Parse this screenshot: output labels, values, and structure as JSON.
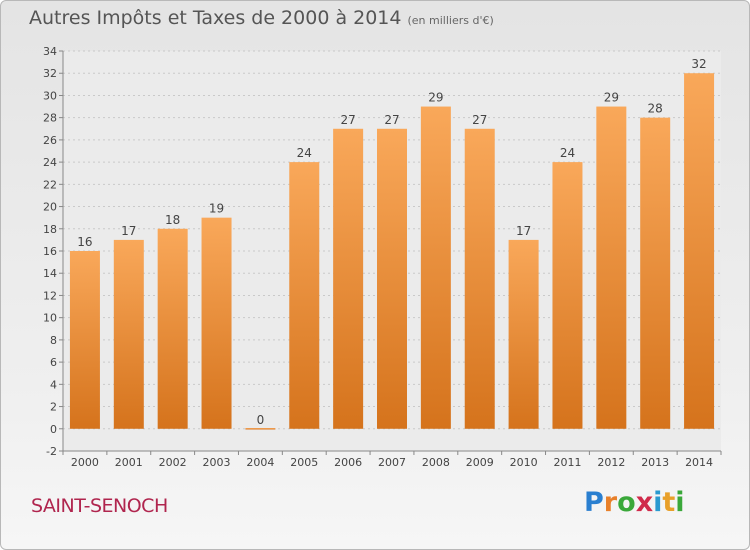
{
  "header": {
    "title": "Autres Impôts et Taxes de 2000 à 2014",
    "unit": "(en milliers d'€)"
  },
  "footer": {
    "location": "SAINT-SENOCH",
    "brand": {
      "letters": [
        "P",
        "r",
        "o",
        "x",
        "i",
        "t",
        "i"
      ],
      "colors": [
        "#2a7fd0",
        "#e8802a",
        "#3aa83a",
        "#d02a4a",
        "#2a9ad0",
        "#e8a02a",
        "#3aa83a"
      ]
    }
  },
  "chart_data": {
    "type": "bar",
    "categories": [
      "2000",
      "2001",
      "2002",
      "2003",
      "2004",
      "2005",
      "2006",
      "2007",
      "2008",
      "2009",
      "2010",
      "2011",
      "2012",
      "2013",
      "2014"
    ],
    "values": [
      16,
      17,
      18,
      19,
      0,
      24,
      27,
      27,
      29,
      27,
      17,
      24,
      29,
      28,
      32
    ],
    "data_labels": [
      "16",
      "17",
      "18",
      "19",
      "0",
      "24",
      "27",
      "27",
      "29",
      "27",
      "17",
      "24",
      "29",
      "28",
      "32"
    ],
    "ylim": [
      -2,
      34
    ],
    "yticks": [
      "-2",
      "0",
      "2",
      "4",
      "6",
      "8",
      "10",
      "12",
      "14",
      "16",
      "18",
      "20",
      "22",
      "24",
      "26",
      "28",
      "30",
      "32",
      "34"
    ],
    "grid": true,
    "bar_color_top": "#f9a85a",
    "bar_color_bottom": "#d5731c"
  }
}
